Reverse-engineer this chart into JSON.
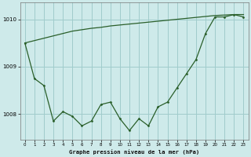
{
  "title": "Graphe pression niveau de la mer (hPa)",
  "background_color": "#ceeaea",
  "grid_color": "#a0cccc",
  "line_color": "#2a5f2a",
  "xlim": [
    -0.5,
    23.5
  ],
  "ylim": [
    1007.45,
    1010.35
  ],
  "yticks": [
    1008,
    1009,
    1010
  ],
  "xticks": [
    0,
    1,
    2,
    3,
    4,
    5,
    6,
    7,
    8,
    9,
    10,
    11,
    12,
    13,
    14,
    15,
    16,
    17,
    18,
    19,
    20,
    21,
    22,
    23
  ],
  "x_tick_labels": [
    "0",
    "1",
    "2",
    "3",
    "4",
    "5",
    "6",
    "7",
    "8",
    "9",
    "10",
    "11",
    "12",
    "13",
    "14",
    "15",
    "16",
    "17",
    "18",
    "19",
    "20",
    "21",
    "22",
    "23"
  ],
  "jagged": [
    1009.5,
    1008.75,
    1008.6,
    1007.85,
    1008.05,
    1007.95,
    1007.75,
    1007.85,
    1008.2,
    1008.25,
    1007.9,
    1007.65,
    1007.9,
    1007.75,
    1008.15,
    1008.25,
    1008.55,
    1008.85,
    1009.15,
    1009.7,
    1010.05,
    1010.05,
    1010.1,
    1010.05
  ],
  "straight": [
    1009.5,
    1009.55,
    1009.6,
    1009.65,
    1009.7,
    1009.75,
    1009.78,
    1009.81,
    1009.83,
    1009.86,
    1009.88,
    1009.9,
    1009.92,
    1009.94,
    1009.96,
    1009.98,
    1010.0,
    1010.02,
    1010.04,
    1010.06,
    1010.08,
    1010.09,
    1010.1,
    1010.1
  ]
}
